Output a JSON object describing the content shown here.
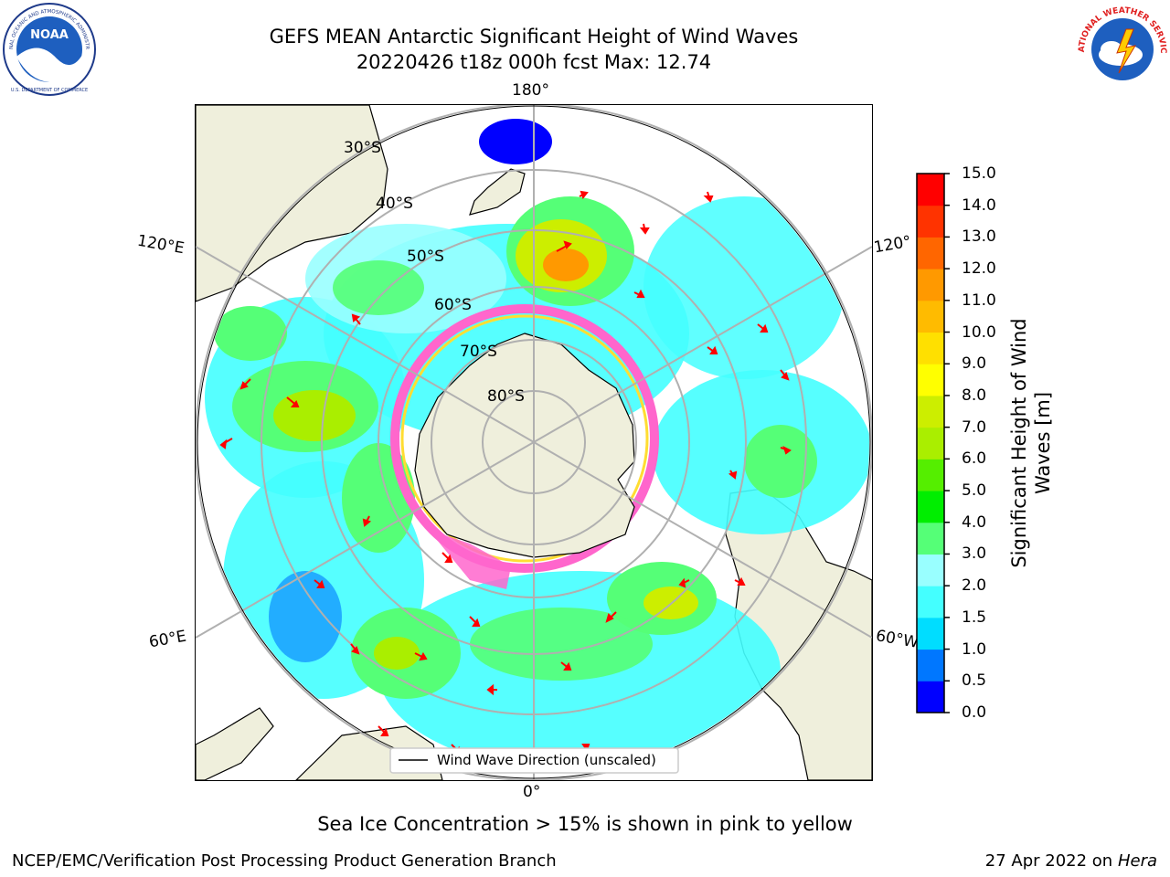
{
  "header": {
    "title_line1": "GEFS MEAN Antarctic Significant Height of Wind Waves",
    "title_line2": "20220426 t18z 000h fcst   Max: 12.74"
  },
  "logos": {
    "noaa_text": "NOAA",
    "noaa_ring_text": "NATIONAL OCEANIC AND ATMOSPHERIC ADMINISTRATION",
    "noaa_ring_text_bottom": "U.S. DEPARTMENT OF COMMERCE",
    "nws_ring_text": "NATIONAL WEATHER SERVICE"
  },
  "map": {
    "longitude_labels": [
      "180°",
      "120°E",
      "120°",
      "60°E",
      "60°W",
      "0°"
    ],
    "latitude_labels": [
      "30°S",
      "40°S",
      "50°S",
      "60°S",
      "70°S",
      "80°S"
    ],
    "legend_label": "Wind Wave Direction (unscaled)",
    "colors": {
      "land": "#efefdc",
      "coast": "#000000",
      "grid": "#b0b0b0",
      "arrow": "#ff0000",
      "ice_pink": "#ff66cc",
      "ice_yellow": "#ffdd33"
    }
  },
  "colorbar": {
    "label_line1": "Significant Height of Wind",
    "label_line2": "Waves [m]",
    "ticks": [
      "0.0",
      "0.5",
      "1.0",
      "1.5",
      "2.0",
      "3.0",
      "4.0",
      "5.0",
      "6.0",
      "7.0",
      "8.0",
      "9.0",
      "10.0",
      "11.0",
      "12.0",
      "13.0",
      "14.0",
      "15.0"
    ],
    "colors": [
      "#0000ff",
      "#0077ff",
      "#00ddff",
      "#44ffff",
      "#99ffff",
      "#55ff77",
      "#00ee00",
      "#55ee00",
      "#aaee00",
      "#ccee00",
      "#ffff00",
      "#ffe000",
      "#ffbb00",
      "#ff9900",
      "#ff6600",
      "#ff3300",
      "#ff0000"
    ]
  },
  "footer": {
    "note": "Sea Ice Concentration > 15% is shown in pink to yellow",
    "credit": "NCEP/EMC/Verification Post Processing Product Generation Branch",
    "date": "27 Apr 2022 on ",
    "machine": "Hera"
  }
}
